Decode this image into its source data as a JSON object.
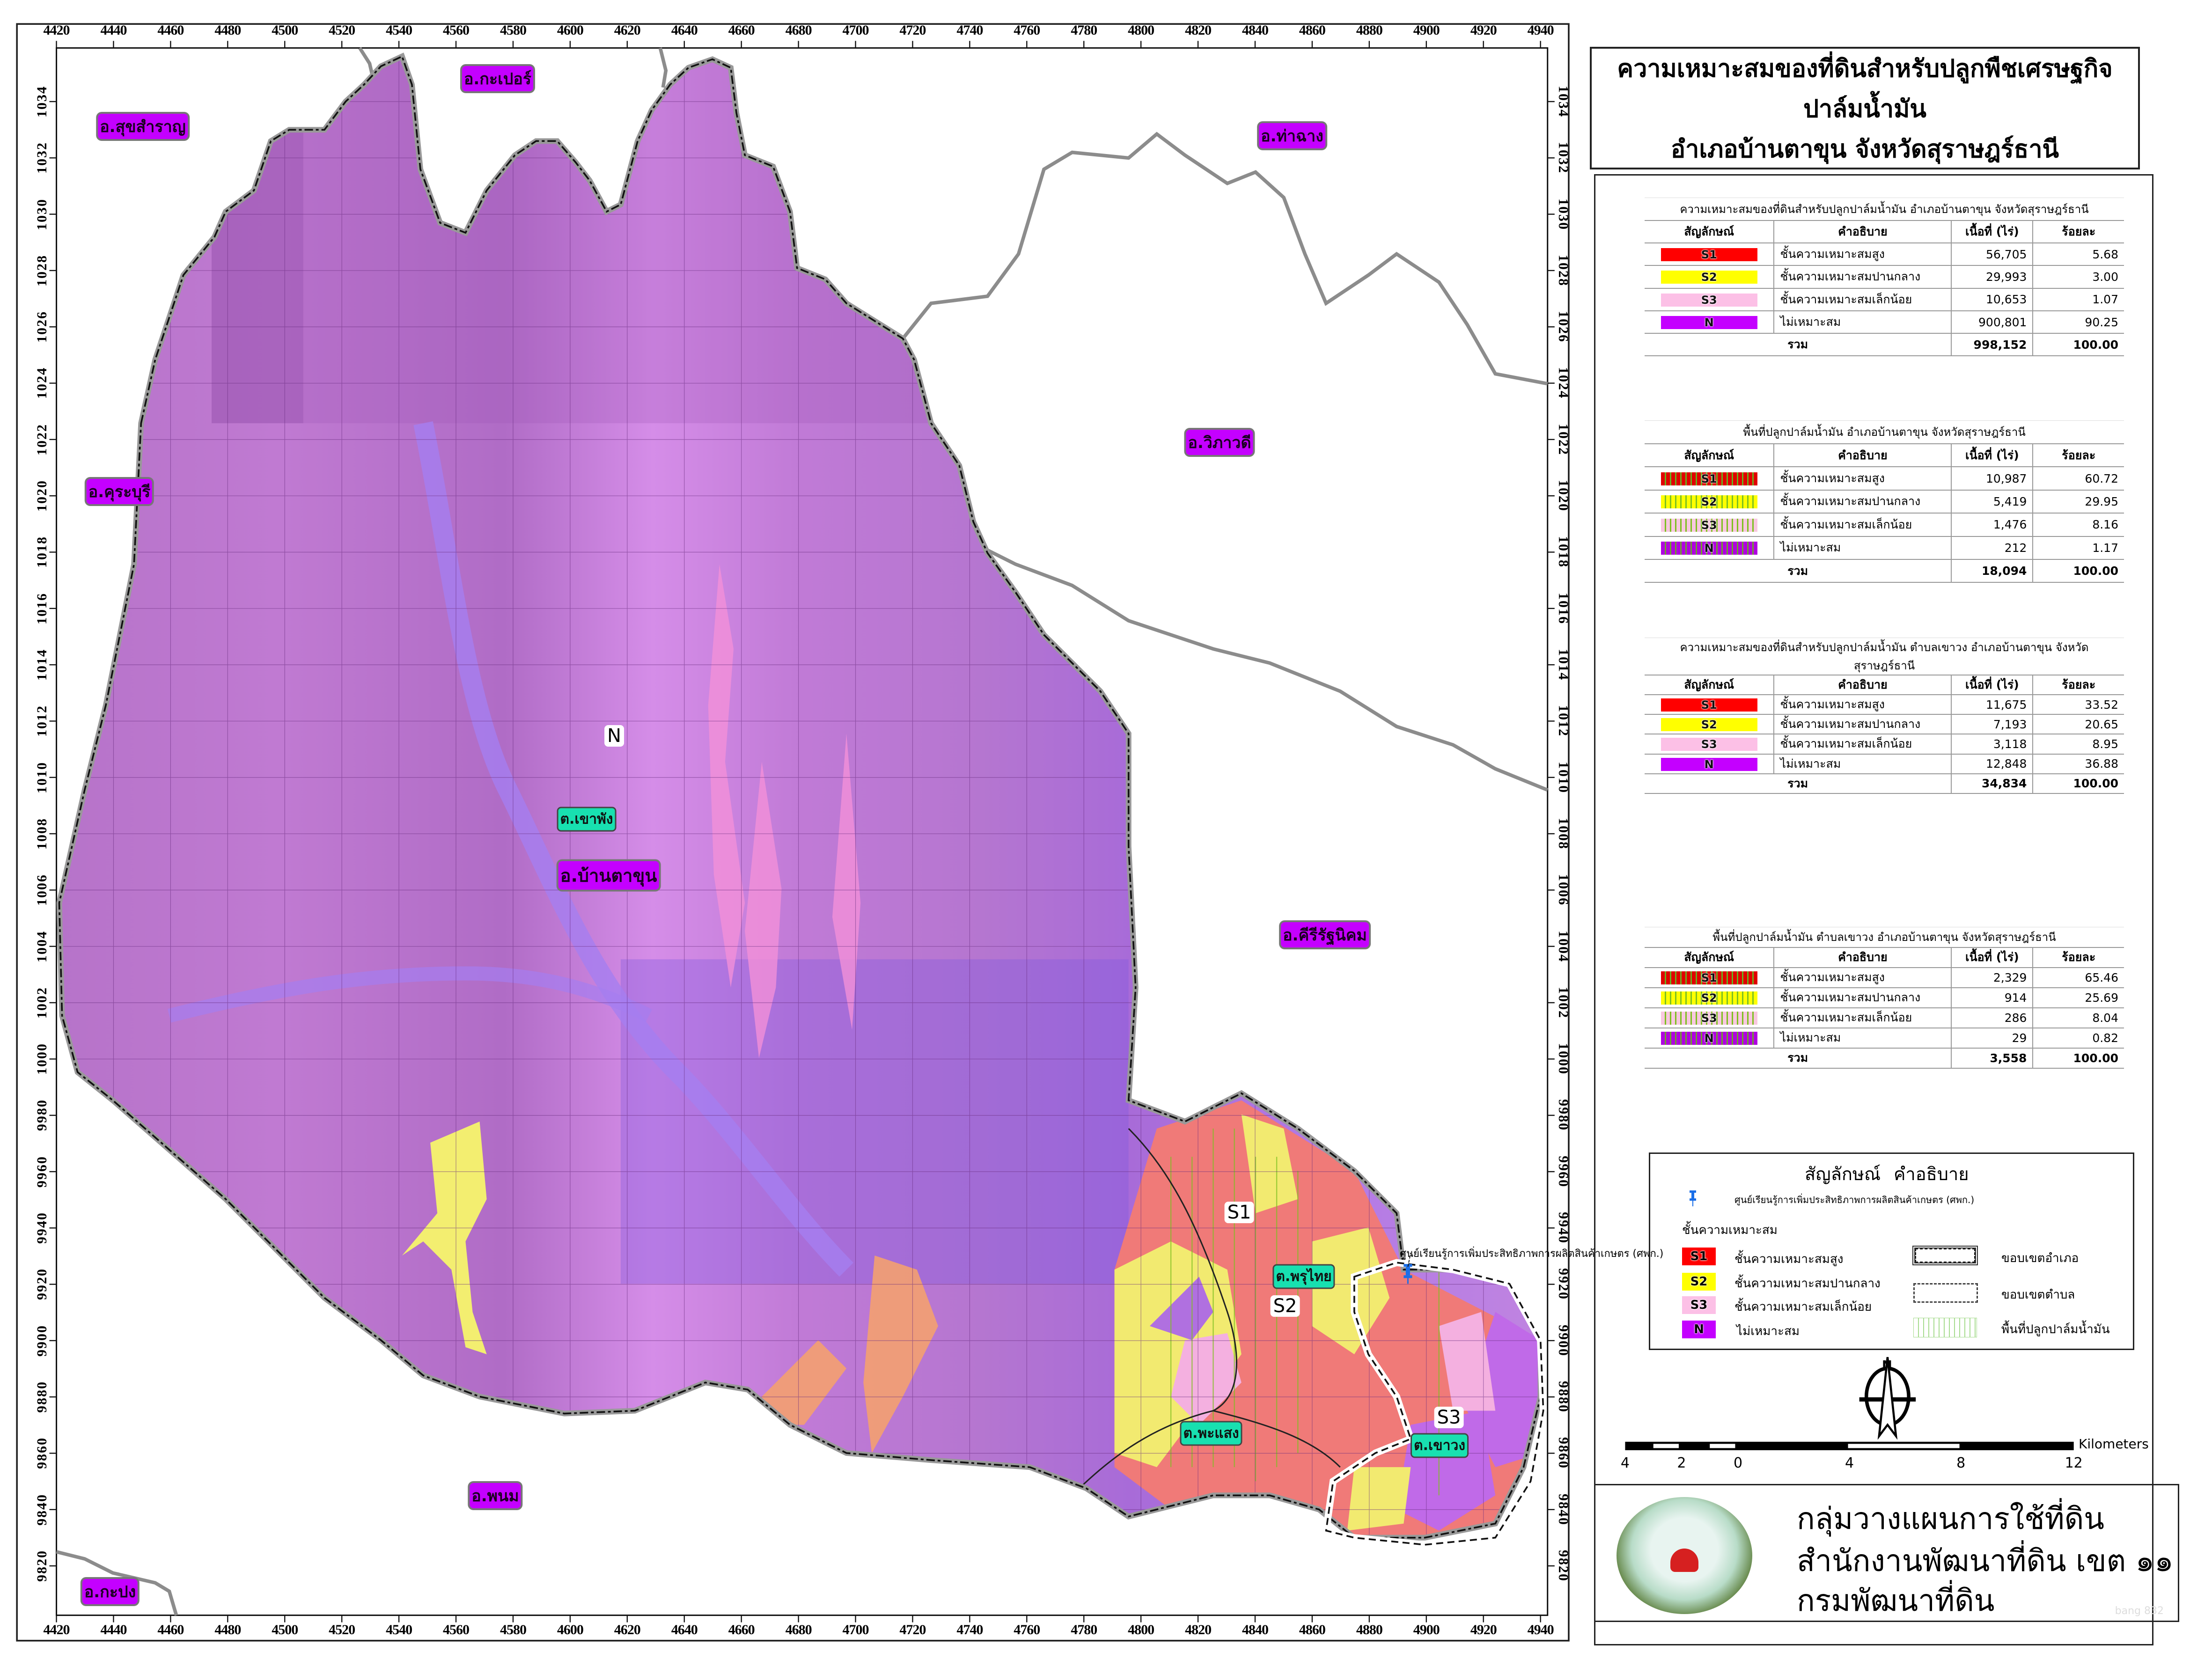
{
  "title": {
    "line1": "ความเหมาะสมของที่ดินสำหรับปลูกพืชเศรษฐกิจ",
    "line2": "ปาล์มน้ำมัน",
    "line3": "อำเภอบ้านตาขุน จังหวัดสุราษฎร์ธานี"
  },
  "axes": {
    "x_ticks": [
      "4420",
      "4440",
      "4460",
      "4480",
      "4500",
      "4520",
      "4540",
      "4560",
      "4580",
      "4600",
      "4620",
      "4640",
      "4660",
      "4680",
      "4700",
      "4720",
      "4740",
      "4760",
      "4780",
      "4800",
      "4820",
      "4840",
      "4860",
      "4880",
      "4900",
      "4920",
      "4940"
    ],
    "x_suffix": "00",
    "y_ticks": [
      "1034",
      "1032",
      "1030",
      "1028",
      "1026",
      "1024",
      "1022",
      "1020",
      "1018",
      "1016",
      "1014",
      "1012",
      "1010",
      "1008",
      "1006",
      "1004",
      "1002",
      "1000",
      "9980",
      "9960",
      "9940",
      "9920",
      "9900",
      "9880",
      "9860",
      "9840",
      "9820"
    ],
    "y_suffix": "000"
  },
  "map_labels": {
    "districts": [
      {
        "name": "อ.กะเปอร์"
      },
      {
        "name": "อ.สุขสำราญ"
      },
      {
        "name": "อ.ท่าฉาง"
      },
      {
        "name": "อ.วิภาวดี"
      },
      {
        "name": "อ.คุระบุรี"
      },
      {
        "name": "อ.บ้านตาขุน"
      },
      {
        "name": "อ.คีรีรัฐนิคม"
      },
      {
        "name": "อ.พนม"
      },
      {
        "name": "อ.กะปง"
      }
    ],
    "subdistricts": [
      {
        "name": "ต.เขาพัง"
      },
      {
        "name": "ต.พรุไทย"
      },
      {
        "name": "ต.พะแสง"
      },
      {
        "name": "ต.เขาวง"
      }
    ],
    "classes": [
      "N",
      "S1",
      "S2",
      "S3"
    ],
    "callout": "ศูนย์เรียนรู้การเพิ่มประสิทธิภาพการผลิตสินค้าเกษตร (ศพก.)"
  },
  "colors": {
    "S1": "#ff0000",
    "S2": "#ffff00",
    "S3": "#fcc0e6",
    "N": "#c400ff",
    "district_label": "#c400ff",
    "subdistrict_label": "#18e0b0"
  },
  "tables": [
    {
      "caption": "ความเหมาะสมของที่ดินสำหรับปลูกปาล์มน้ำมัน อำเภอบ้านตาขุน จังหวัดสุราษฎร์ธานี",
      "headers": [
        "สัญลักษณ์",
        "คำอธิบาย",
        "เนื้อที่ (ไร่)",
        "ร้อยละ"
      ],
      "rows": [
        {
          "symbol": "S1",
          "desc": "ชั้นความเหมาะสมสูง",
          "area": "56,705",
          "pct": "5.68"
        },
        {
          "symbol": "S2",
          "desc": "ชั้นความเหมาะสมปานกลาง",
          "area": "29,993",
          "pct": "3.00"
        },
        {
          "symbol": "S3",
          "desc": "ชั้นความเหมาะสมเล็กน้อย",
          "area": "10,653",
          "pct": "1.07"
        },
        {
          "symbol": "N",
          "desc": "ไม่เหมาะสม",
          "area": "900,801",
          "pct": "90.25"
        }
      ],
      "total": {
        "label": "รวม",
        "area": "998,152",
        "pct": "100.00"
      }
    },
    {
      "caption": "พื้นที่ปลูกปาล์มน้ำมัน อำเภอบ้านตาขุน จังหวัดสุราษฎร์ธานี",
      "headers": [
        "สัญลักษณ์",
        "คำอธิบาย",
        "เนื้อที่ (ไร่)",
        "ร้อยละ"
      ],
      "rows": [
        {
          "symbol": "S1",
          "desc": "ชั้นความเหมาะสมสูง",
          "area": "10,987",
          "pct": "60.72"
        },
        {
          "symbol": "S2",
          "desc": "ชั้นความเหมาะสมปานกลาง",
          "area": "5,419",
          "pct": "29.95"
        },
        {
          "symbol": "S3",
          "desc": "ชั้นความเหมาะสมเล็กน้อย",
          "area": "1,476",
          "pct": "8.16"
        },
        {
          "symbol": "N",
          "desc": "ไม่เหมาะสม",
          "area": "212",
          "pct": "1.17"
        }
      ],
      "total": {
        "label": "รวม",
        "area": "18,094",
        "pct": "100.00"
      }
    },
    {
      "caption": "ความเหมาะสมของที่ดินสำหรับปลูกปาล์มน้ำมัน ตำบลเขาวง อำเภอบ้านตาขุน จังหวัดสุราษฎร์ธานี",
      "headers": [
        "สัญลักษณ์",
        "คำอธิบาย",
        "เนื้อที่ (ไร่)",
        "ร้อยละ"
      ],
      "rows": [
        {
          "symbol": "S1",
          "desc": "ชั้นความเหมาะสมสูง",
          "area": "11,675",
          "pct": "33.52"
        },
        {
          "symbol": "S2",
          "desc": "ชั้นความเหมาะสมปานกลาง",
          "area": "7,193",
          "pct": "20.65"
        },
        {
          "symbol": "S3",
          "desc": "ชั้นความเหมาะสมเล็กน้อย",
          "area": "3,118",
          "pct": "8.95"
        },
        {
          "symbol": "N",
          "desc": "ไม่เหมาะสม",
          "area": "12,848",
          "pct": "36.88"
        }
      ],
      "total": {
        "label": "รวม",
        "area": "34,834",
        "pct": "100.00"
      }
    },
    {
      "caption": "พื้นที่ปลูกปาล์มน้ำมัน ตำบลเขาวง อำเภอบ้านตาขุน จังหวัดสุราษฎร์ธานี",
      "headers": [
        "สัญลักษณ์",
        "คำอธิบาย",
        "เนื้อที่ (ไร่)",
        "ร้อยละ"
      ],
      "rows": [
        {
          "symbol": "S1",
          "desc": "ชั้นความเหมาะสมสูง",
          "area": "2,329",
          "pct": "65.46"
        },
        {
          "symbol": "S2",
          "desc": "ชั้นความเหมาะสมปานกลาง",
          "area": "914",
          "pct": "25.69"
        },
        {
          "symbol": "S3",
          "desc": "ชั้นความเหมาะสมเล็กน้อย",
          "area": "286",
          "pct": "8.04"
        },
        {
          "symbol": "N",
          "desc": "ไม่เหมาะสม",
          "area": "29",
          "pct": "0.82"
        }
      ],
      "total": {
        "label": "รวม",
        "area": "3,558",
        "pct": "100.00"
      }
    }
  ],
  "legend": {
    "heading_symbol": "สัญลักษณ์",
    "heading_desc": "คำอธิบาย",
    "pin_label": "ศูนย์เรียนรู้การเพิ่มประสิทธิภาพการผลิตสินค้าเกษตร (ศพก.)",
    "class_heading": "ชั้นความเหมาะสม",
    "classes": [
      {
        "symbol": "S1",
        "desc": "ชั้นความเหมาะสมสูง"
      },
      {
        "symbol": "S2",
        "desc": "ชั้นความเหมาะสมปานกลาง"
      },
      {
        "symbol": "S3",
        "desc": "ชั้นความเหมาะสมเล็กน้อย"
      },
      {
        "symbol": "N",
        "desc": "ไม่เหมาะสม"
      }
    ],
    "lines": [
      {
        "icon": "district-boundary",
        "desc": "ขอบเขตอำเภอ"
      },
      {
        "icon": "subdistrict-boundary",
        "desc": "ขอบเขตตำบล"
      },
      {
        "icon": "oil-palm-area-hatch",
        "desc": "พื้นที่ปลูกปาล์มน้ำมัน"
      }
    ]
  },
  "north_arrow": {
    "label": "N"
  },
  "scale_bar": {
    "labels": [
      "4",
      "2",
      "0",
      "4",
      "8",
      "12"
    ],
    "unit": "Kilometers"
  },
  "footer": {
    "line1": "กลุ่มวางแผนการใช้ที่ดิน",
    "line2": "สำนักงานพัฒนาที่ดิน เขต ๑๑",
    "line3": "กรมพัฒนาที่ดิน",
    "logo_text": "กรมพัฒนาที่ดิน",
    "watermark": "bang 832"
  }
}
